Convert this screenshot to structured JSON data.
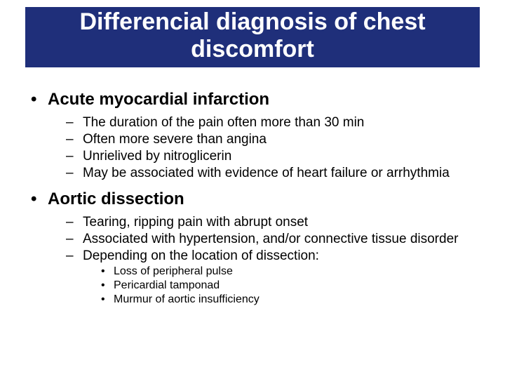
{
  "title": "Differencial diagnosis of chest discomfort",
  "title_fontsize": 34,
  "title_bg": "#1f2f7a",
  "title_color": "#ffffff",
  "body_color": "#000000",
  "lvl0_fontsize": 24,
  "lvl1_fontsize": 19,
  "lvl2_fontsize": 16,
  "items": [
    {
      "level": 0,
      "text": "Acute myocardial infarction"
    },
    {
      "level": 1,
      "text": "The duration of the pain often more than 30 min"
    },
    {
      "level": 1,
      "text": "Often more severe than angina"
    },
    {
      "level": 1,
      "text": "Unrielived by nitroglicerin"
    },
    {
      "level": 1,
      "text": "May be associated with evidence of heart failure or arrhythmia"
    },
    {
      "level": 0,
      "text": "Aortic dissection"
    },
    {
      "level": 1,
      "text": "Tearing, ripping pain with abrupt onset"
    },
    {
      "level": 1,
      "text": "Associated with hypertension, and/or connective tissue disorder"
    },
    {
      "level": 1,
      "text": "Depending on the location of dissection:"
    },
    {
      "level": 2,
      "text": "Loss of peripheral pulse"
    },
    {
      "level": 2,
      "text": "Pericardial tamponad"
    },
    {
      "level": 2,
      "text": "Murmur of aortic insufficiency"
    }
  ]
}
